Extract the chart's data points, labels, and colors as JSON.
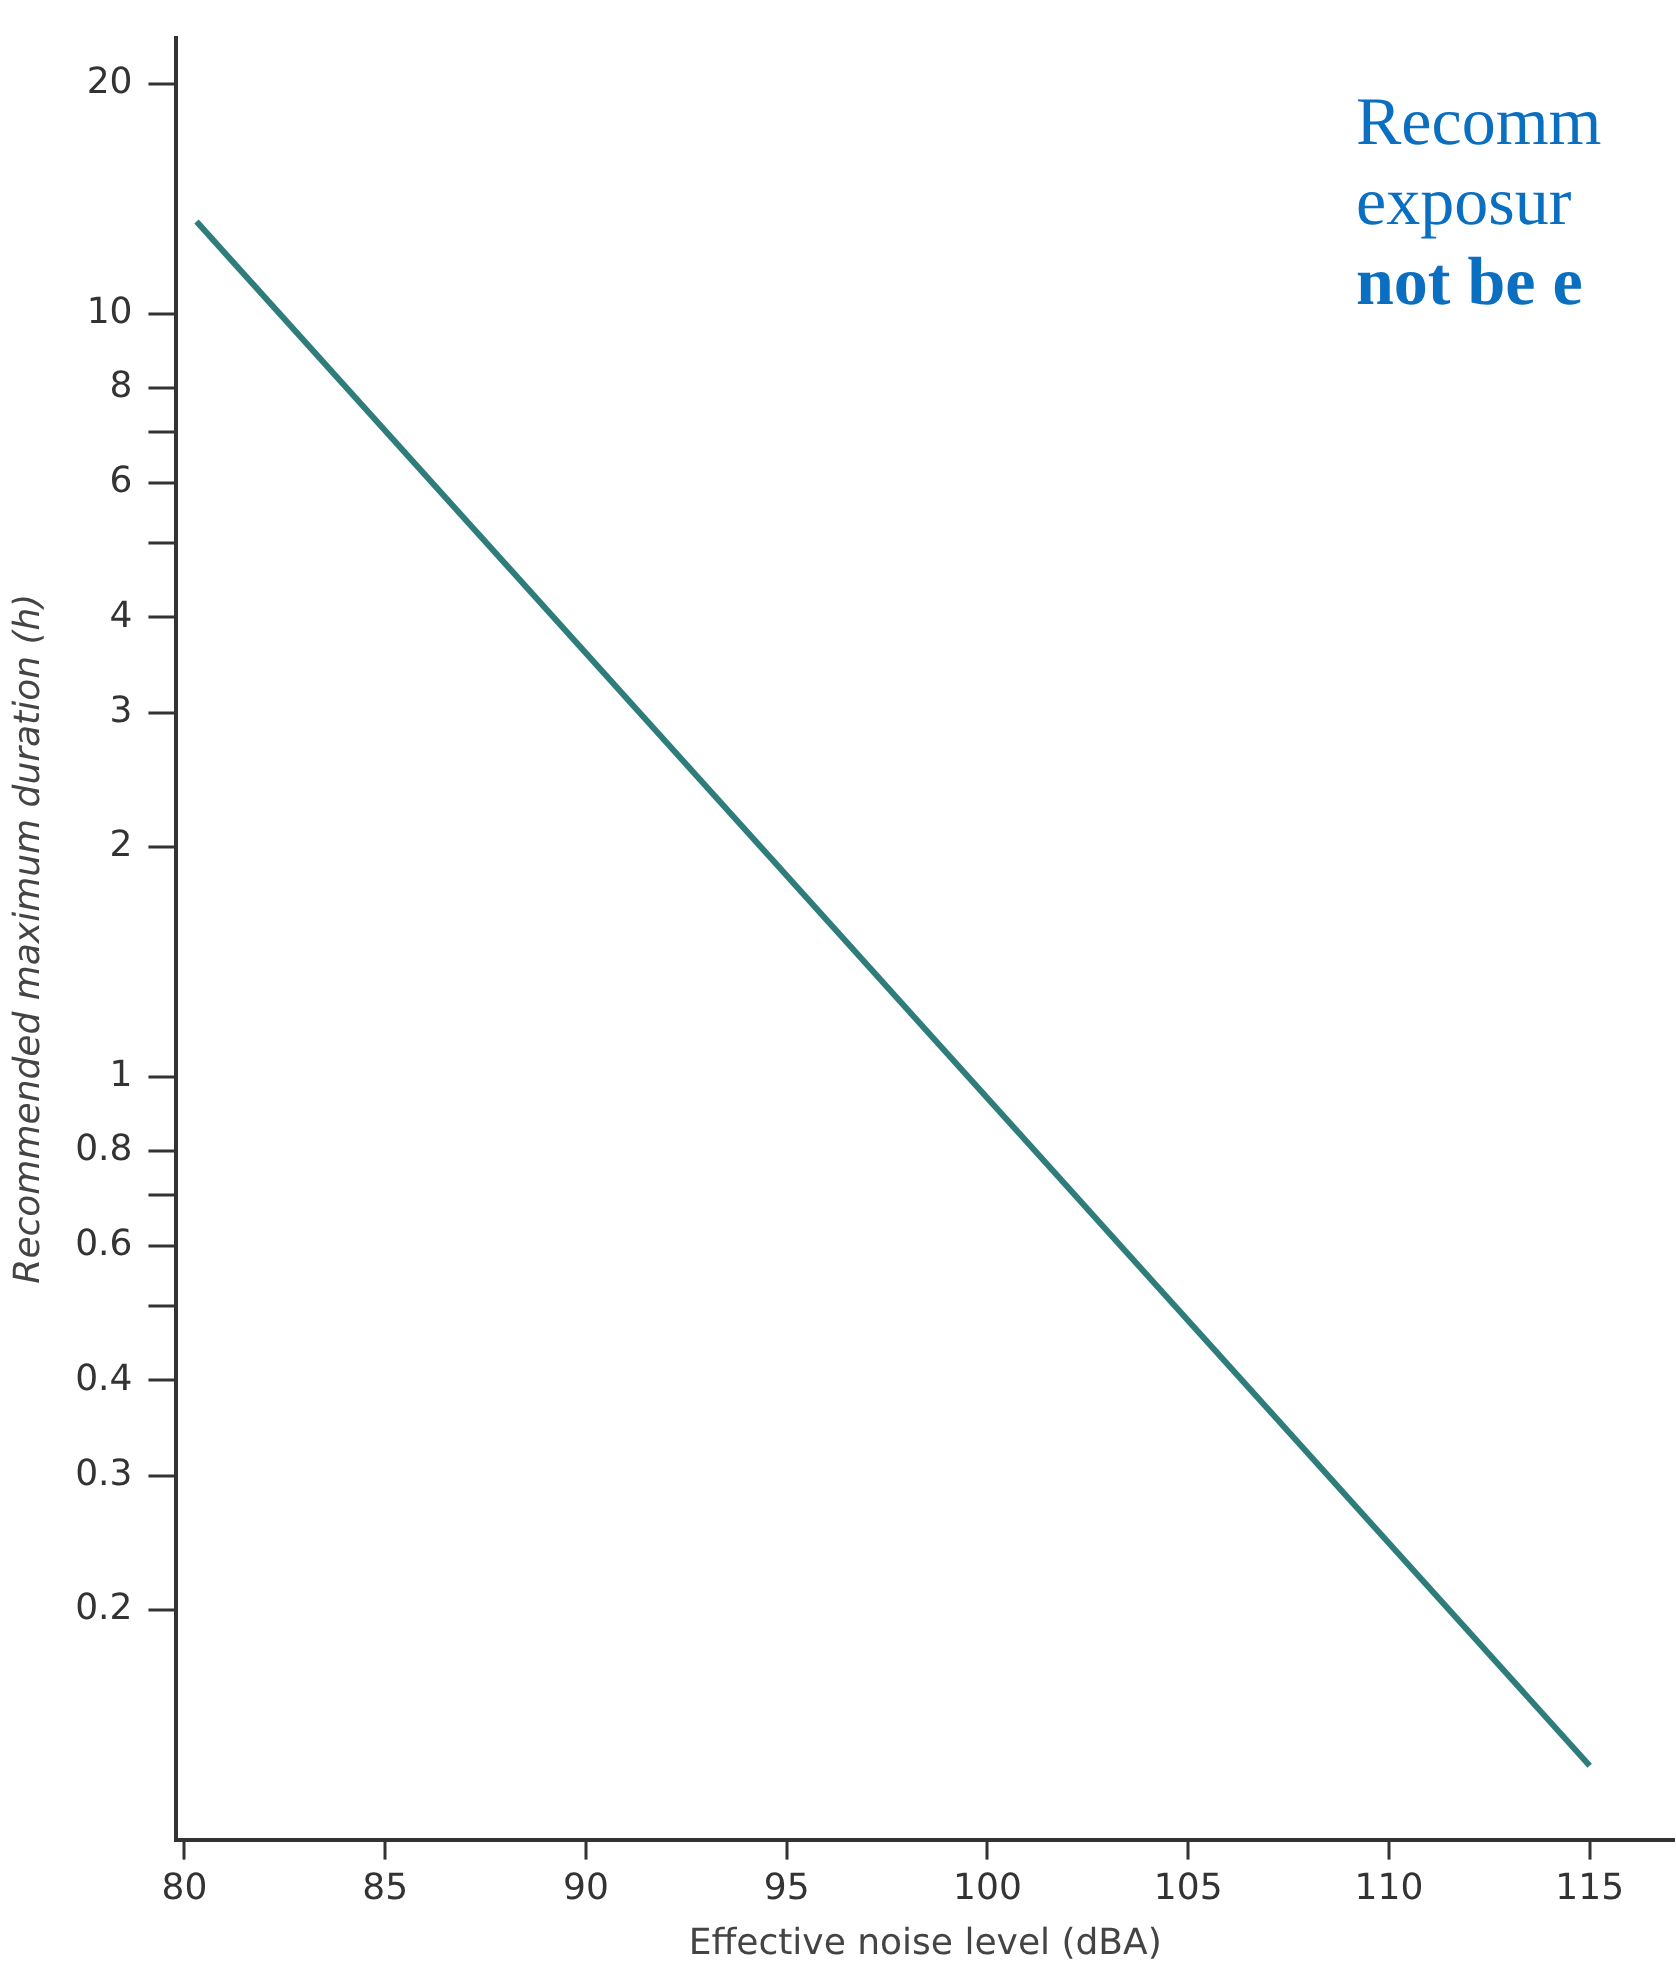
{
  "chart_data": {
    "type": "line",
    "xlabel": "Effective noise level (dBA)",
    "ylabel": "Recommended maximum duration (h)",
    "x": [
      80.3,
      115
    ],
    "series": [
      {
        "color": "#2e7d7a",
        "values": [
          13.2,
          0.125
        ]
      }
    ],
    "log": "y",
    "grid": false,
    "legend": false,
    "marker": "none",
    "line_style": "solid",
    "xlim": [
      79.8,
      117.1
    ],
    "xticks": [
      80,
      85,
      90,
      95,
      100,
      105,
      110,
      115
    ],
    "ylim": [
      0.1,
      23
    ],
    "yticks": [
      20,
      10,
      8,
      {
        "value": 7,
        "label": null
      },
      6,
      {
        "value": 5,
        "label": null
      },
      4,
      3,
      2,
      1,
      0.8,
      {
        "value": 0.7,
        "label": null
      },
      0.6,
      {
        "value": 0.5,
        "label": null
      },
      0.4,
      0.3,
      0.2
    ],
    "annotations": [
      "Recomm",
      "exposur",
      "not be e"
    ]
  }
}
